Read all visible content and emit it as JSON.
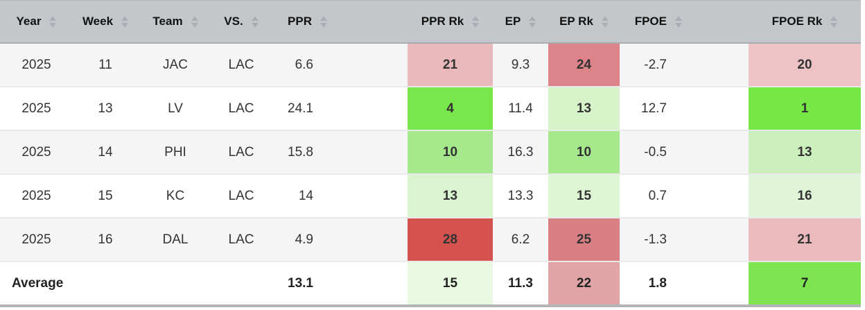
{
  "table": {
    "columns": [
      {
        "key": "year",
        "label": "Year",
        "sortable": true
      },
      {
        "key": "week",
        "label": "Week",
        "sortable": true
      },
      {
        "key": "team",
        "label": "Team",
        "sortable": true
      },
      {
        "key": "vs",
        "label": "VS.",
        "sortable": true
      },
      {
        "key": "ppr",
        "label": "PPR",
        "sortable": true
      },
      {
        "key": "ppr_rk",
        "label": "PPR Rk",
        "sortable": true
      },
      {
        "key": "ep",
        "label": "EP",
        "sortable": true
      },
      {
        "key": "ep_rk",
        "label": "EP Rk",
        "sortable": true
      },
      {
        "key": "fpoe",
        "label": "FPOE",
        "sortable": true
      },
      {
        "key": "fpoe_rk",
        "label": "FPOE Rk",
        "sortable": true
      }
    ],
    "rows": [
      {
        "year": "2025",
        "week": "11",
        "team": "JAC",
        "vs": "LAC",
        "ppr": "6.6",
        "ppr_rk": {
          "value": "21",
          "bg": "#eab9bc"
        },
        "ep": "9.3",
        "ep_rk": {
          "value": "24",
          "bg": "#dc8489"
        },
        "fpoe": "-2.7",
        "fpoe_rk": {
          "value": "20",
          "bg": "#edc3c5"
        }
      },
      {
        "year": "2025",
        "week": "13",
        "team": "LV",
        "vs": "LAC",
        "ppr": "24.1",
        "ppr_rk": {
          "value": "4",
          "bg": "#78e74b"
        },
        "ep": "11.4",
        "ep_rk": {
          "value": "13",
          "bg": "#d6f3c9"
        },
        "fpoe": "12.7",
        "fpoe_rk": {
          "value": "1",
          "bg": "#76e845"
        }
      },
      {
        "year": "2025",
        "week": "14",
        "team": "PHI",
        "vs": "LAC",
        "ppr": "15.8",
        "ppr_rk": {
          "value": "10",
          "bg": "#a6e98c"
        },
        "ep": "16.3",
        "ep_rk": {
          "value": "10",
          "bg": "#a6e98c"
        },
        "fpoe": "-0.5",
        "fpoe_rk": {
          "value": "13",
          "bg": "#cbefbd"
        }
      },
      {
        "year": "2025",
        "week": "15",
        "team": "KC",
        "vs": "LAC",
        "ppr": "14",
        "ppr_rk": {
          "value": "13",
          "bg": "#d9f4ce"
        },
        "ep": "13.3",
        "ep_rk": {
          "value": "15",
          "bg": "#def5d4"
        },
        "fpoe": "0.7",
        "fpoe_rk": {
          "value": "16",
          "bg": "#e0f5d7"
        }
      },
      {
        "year": "2025",
        "week": "16",
        "team": "DAL",
        "vs": "LAC",
        "ppr": "4.9",
        "ppr_rk": {
          "value": "28",
          "bg": "#d5534f"
        },
        "ep": "6.2",
        "ep_rk": {
          "value": "25",
          "bg": "#da8085"
        },
        "fpoe": "-1.3",
        "fpoe_rk": {
          "value": "21",
          "bg": "#ebbabd"
        }
      }
    ],
    "average_row": {
      "label": "Average",
      "ppr": "13.1",
      "ppr_rk": {
        "value": "15",
        "bg": "#e8f8e1"
      },
      "ep": "11.3",
      "ep_rk": {
        "value": "22",
        "bg": "#e1a4a7"
      },
      "fpoe": "1.8",
      "fpoe_rk": {
        "value": "7",
        "bg": "#7ee44f"
      }
    }
  },
  "colors": {
    "header_bg": "#c3c7ca",
    "row_odd_bg": "#f5f5f6",
    "row_even_bg": "#ffffff",
    "sort_arrow": "#a9aeb4",
    "rank_red_max": "#d5534f",
    "rank_green_max": "#76e845",
    "bottom_border": "#b2b6b9",
    "text": "#333333"
  }
}
